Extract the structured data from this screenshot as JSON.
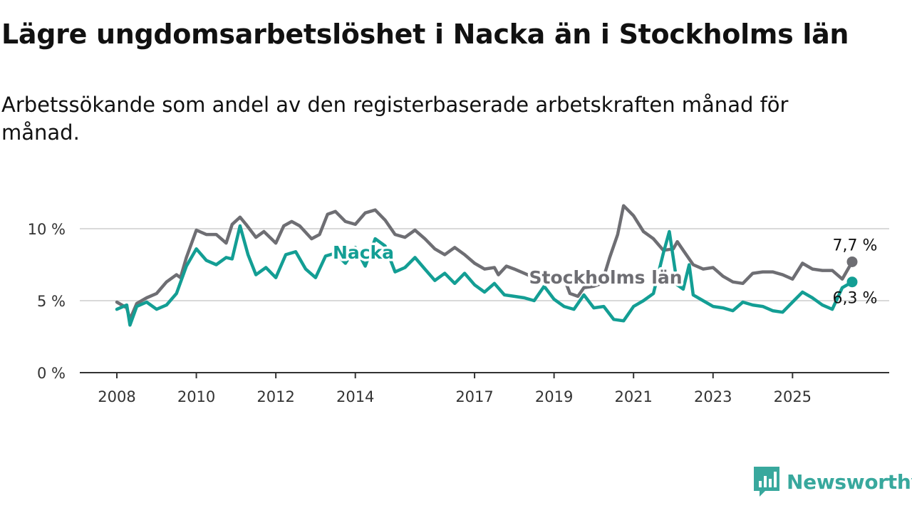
{
  "title": "Lägre ungdomsarbetslöshet i Nacka än i Stockholms län",
  "subtitle": "Arbetssökande som andel av den registerbaserade arbetskraften månad för månad.",
  "brand": {
    "name": "Newsworthy",
    "icon": "newsworthy-logo-icon",
    "color": "#38a89d"
  },
  "chart_data": {
    "type": "line",
    "title": "Lägre ungdomsarbetslöshet i Nacka än i Stockholms län",
    "subtitle": "Arbetssökande som andel av den registerbaserade arbetskraften månad för månad.",
    "xlabel": "",
    "ylabel": "",
    "x_ticks": [
      2008,
      2010,
      2012,
      2014,
      2017,
      2019,
      2021,
      2023,
      2025
    ],
    "y_ticks": [
      {
        "value": 0,
        "label": "0 %"
      },
      {
        "value": 5,
        "label": "5 %"
      },
      {
        "value": 10,
        "label": "10 %"
      }
    ],
    "ylim": [
      0,
      12
    ],
    "grid": "horizontal",
    "legend": "inline labels",
    "series": [
      {
        "name": "Stockholms län",
        "color": "#6e6e73",
        "end_label": "7,7 %",
        "points": [
          [
            2008.0,
            4.9
          ],
          [
            2008.25,
            4.5
          ],
          [
            2008.33,
            3.7
          ],
          [
            2008.5,
            4.8
          ],
          [
            2008.75,
            5.2
          ],
          [
            2009.0,
            5.5
          ],
          [
            2009.25,
            6.3
          ],
          [
            2009.5,
            6.8
          ],
          [
            2009.6,
            6.6
          ],
          [
            2009.75,
            8.0
          ],
          [
            2010.0,
            9.9
          ],
          [
            2010.25,
            9.6
          ],
          [
            2010.5,
            9.6
          ],
          [
            2010.75,
            9.0
          ],
          [
            2010.9,
            10.3
          ],
          [
            2011.1,
            10.8
          ],
          [
            2011.25,
            10.3
          ],
          [
            2011.5,
            9.4
          ],
          [
            2011.7,
            9.8
          ],
          [
            2012.0,
            9.0
          ],
          [
            2012.2,
            10.2
          ],
          [
            2012.4,
            10.5
          ],
          [
            2012.6,
            10.2
          ],
          [
            2012.9,
            9.3
          ],
          [
            2013.1,
            9.6
          ],
          [
            2013.3,
            11.0
          ],
          [
            2013.5,
            11.2
          ],
          [
            2013.75,
            10.5
          ],
          [
            2014.0,
            10.3
          ],
          [
            2014.25,
            11.1
          ],
          [
            2014.5,
            11.3
          ],
          [
            2014.75,
            10.6
          ],
          [
            2015.0,
            9.6
          ],
          [
            2015.25,
            9.4
          ],
          [
            2015.5,
            9.9
          ],
          [
            2015.75,
            9.3
          ],
          [
            2016.0,
            8.6
          ],
          [
            2016.25,
            8.2
          ],
          [
            2016.5,
            8.7
          ],
          [
            2016.75,
            8.2
          ],
          [
            2017.0,
            7.6
          ],
          [
            2017.25,
            7.2
          ],
          [
            2017.5,
            7.3
          ],
          [
            2017.6,
            6.8
          ],
          [
            2017.8,
            7.4
          ],
          [
            2018.0,
            7.2
          ],
          [
            2018.25,
            6.9
          ],
          [
            2018.5,
            6.6
          ],
          [
            2018.75,
            6.3
          ],
          [
            2019.0,
            6.7
          ],
          [
            2019.25,
            6.6
          ],
          [
            2019.4,
            5.5
          ],
          [
            2019.6,
            5.3
          ],
          [
            2019.75,
            5.9
          ],
          [
            2020.0,
            6.0
          ],
          [
            2020.2,
            6.2
          ],
          [
            2020.4,
            8.0
          ],
          [
            2020.6,
            9.6
          ],
          [
            2020.75,
            11.6
          ],
          [
            2021.0,
            10.9
          ],
          [
            2021.25,
            9.8
          ],
          [
            2021.5,
            9.3
          ],
          [
            2021.75,
            8.5
          ],
          [
            2022.0,
            8.6
          ],
          [
            2022.1,
            9.1
          ],
          [
            2022.25,
            8.5
          ],
          [
            2022.5,
            7.5
          ],
          [
            2022.75,
            7.2
          ],
          [
            2023.0,
            7.3
          ],
          [
            2023.25,
            6.7
          ],
          [
            2023.5,
            6.3
          ],
          [
            2023.75,
            6.2
          ],
          [
            2024.0,
            6.9
          ],
          [
            2024.25,
            7.0
          ],
          [
            2024.5,
            7.0
          ],
          [
            2024.75,
            6.8
          ],
          [
            2025.0,
            6.5
          ],
          [
            2025.25,
            7.6
          ],
          [
            2025.5,
            7.2
          ],
          [
            2025.75,
            7.1
          ],
          [
            2026.0,
            7.1
          ],
          [
            2026.25,
            6.5
          ],
          [
            2026.5,
            7.7
          ]
        ]
      },
      {
        "name": "Nacka",
        "color": "#139e94",
        "end_label": "6,3 %",
        "points": [
          [
            2008.0,
            4.4
          ],
          [
            2008.25,
            4.7
          ],
          [
            2008.33,
            3.3
          ],
          [
            2008.5,
            4.6
          ],
          [
            2008.75,
            4.9
          ],
          [
            2009.0,
            4.4
          ],
          [
            2009.25,
            4.7
          ],
          [
            2009.5,
            5.5
          ],
          [
            2009.75,
            7.4
          ],
          [
            2010.0,
            8.6
          ],
          [
            2010.25,
            7.8
          ],
          [
            2010.5,
            7.5
          ],
          [
            2010.75,
            8.0
          ],
          [
            2010.9,
            7.9
          ],
          [
            2011.1,
            10.2
          ],
          [
            2011.3,
            8.2
          ],
          [
            2011.5,
            6.8
          ],
          [
            2011.75,
            7.3
          ],
          [
            2012.0,
            6.6
          ],
          [
            2012.25,
            8.2
          ],
          [
            2012.5,
            8.4
          ],
          [
            2012.75,
            7.2
          ],
          [
            2013.0,
            6.6
          ],
          [
            2013.25,
            8.1
          ],
          [
            2013.5,
            8.3
          ],
          [
            2013.75,
            7.6
          ],
          [
            2014.0,
            8.7
          ],
          [
            2014.25,
            7.4
          ],
          [
            2014.5,
            9.3
          ],
          [
            2014.75,
            8.8
          ],
          [
            2015.0,
            7.0
          ],
          [
            2015.25,
            7.3
          ],
          [
            2015.5,
            8.0
          ],
          [
            2015.75,
            7.2
          ],
          [
            2016.0,
            6.4
          ],
          [
            2016.25,
            6.9
          ],
          [
            2016.5,
            6.2
          ],
          [
            2016.75,
            6.9
          ],
          [
            2017.0,
            6.1
          ],
          [
            2017.25,
            5.6
          ],
          [
            2017.5,
            6.2
          ],
          [
            2017.75,
            5.4
          ],
          [
            2018.0,
            5.3
          ],
          [
            2018.25,
            5.2
          ],
          [
            2018.5,
            5.0
          ],
          [
            2018.75,
            6.0
          ],
          [
            2019.0,
            5.1
          ],
          [
            2019.25,
            4.6
          ],
          [
            2019.5,
            4.4
          ],
          [
            2019.75,
            5.4
          ],
          [
            2020.0,
            4.5
          ],
          [
            2020.25,
            4.6
          ],
          [
            2020.5,
            3.7
          ],
          [
            2020.75,
            3.6
          ],
          [
            2021.0,
            4.6
          ],
          [
            2021.25,
            5.0
          ],
          [
            2021.5,
            5.5
          ],
          [
            2021.75,
            8.3
          ],
          [
            2021.9,
            9.8
          ],
          [
            2022.1,
            6.1
          ],
          [
            2022.25,
            5.8
          ],
          [
            2022.4,
            7.5
          ],
          [
            2022.5,
            5.4
          ],
          [
            2022.75,
            5.0
          ],
          [
            2023.0,
            4.6
          ],
          [
            2023.25,
            4.5
          ],
          [
            2023.5,
            4.3
          ],
          [
            2023.75,
            4.9
          ],
          [
            2024.0,
            4.7
          ],
          [
            2024.25,
            4.6
          ],
          [
            2024.5,
            4.3
          ],
          [
            2024.75,
            4.2
          ],
          [
            2025.0,
            4.9
          ],
          [
            2025.25,
            5.6
          ],
          [
            2025.5,
            5.2
          ],
          [
            2025.75,
            4.7
          ],
          [
            2026.0,
            4.4
          ],
          [
            2026.25,
            5.9
          ],
          [
            2026.5,
            6.3
          ]
        ]
      }
    ]
  }
}
